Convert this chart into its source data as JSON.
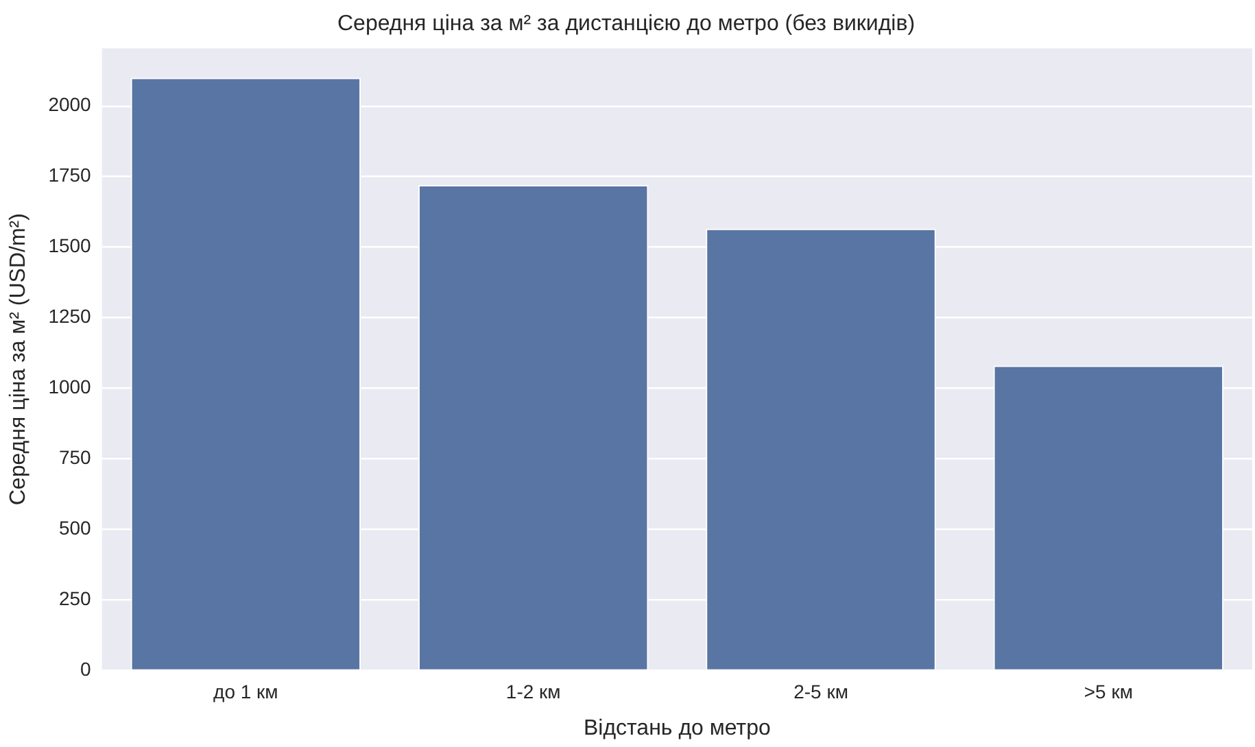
{
  "chart_data": {
    "type": "bar",
    "title": "Середня ціна за м² за дистанцією до метро (без викидів)",
    "xlabel": "Відстань до метро",
    "ylabel": "Середня ціна за м² (USD/m²)",
    "categories": [
      "до 1 км",
      "1-2 км",
      "2-5 км",
      ">5 км"
    ],
    "values": [
      2100,
      1720,
      1565,
      1080
    ],
    "color": "#5975a4",
    "ylim": [
      0,
      2205
    ],
    "yticks": [
      0,
      250,
      500,
      750,
      1000,
      1250,
      1500,
      1750,
      2000
    ],
    "grid": "y"
  }
}
